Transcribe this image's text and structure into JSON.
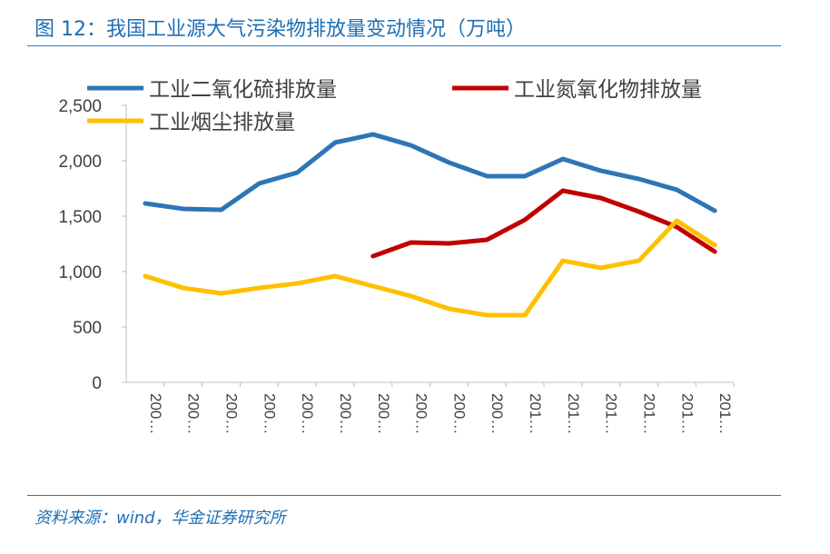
{
  "title": "图 12：我国工业源大气污染物排放量变动情况（万吨）",
  "source": "资料来源：wind，华金证券研究所",
  "chart_data": {
    "type": "line",
    "title": "",
    "xlabel": "",
    "ylabel": "",
    "ylim": [
      0,
      2500
    ],
    "yticks": [
      "0",
      "500",
      "1,000",
      "1,500",
      "2,000",
      "2,500"
    ],
    "categories": [
      "200…",
      "200…",
      "200…",
      "200…",
      "200…",
      "200…",
      "200…",
      "200…",
      "200…",
      "200…",
      "201…",
      "201…",
      "201…",
      "201…",
      "201…",
      "201…"
    ],
    "grid": false,
    "legend_position": "top",
    "series": [
      {
        "name": "工业二氧化硫排放量",
        "color": "#2e75b6",
        "values": [
          1615,
          1566,
          1557,
          1795,
          1893,
          2164,
          2238,
          2139,
          1984,
          1861,
          1861,
          2016,
          1910,
          1836,
          1738,
          1549
        ]
      },
      {
        "name": "工业氮氧化物排放量",
        "color": "#c00000",
        "values": [
          null,
          null,
          null,
          null,
          null,
          null,
          1139,
          1262,
          1254,
          1287,
          1467,
          1730,
          1664,
          1541,
          1402,
          1180
        ]
      },
      {
        "name": "工业烟尘排放量",
        "color": "#ffc000",
        "values": [
          959,
          852,
          803,
          852,
          893,
          959,
          869,
          779,
          664,
          607,
          607,
          1098,
          1033,
          1098,
          1459,
          1238
        ]
      }
    ]
  }
}
